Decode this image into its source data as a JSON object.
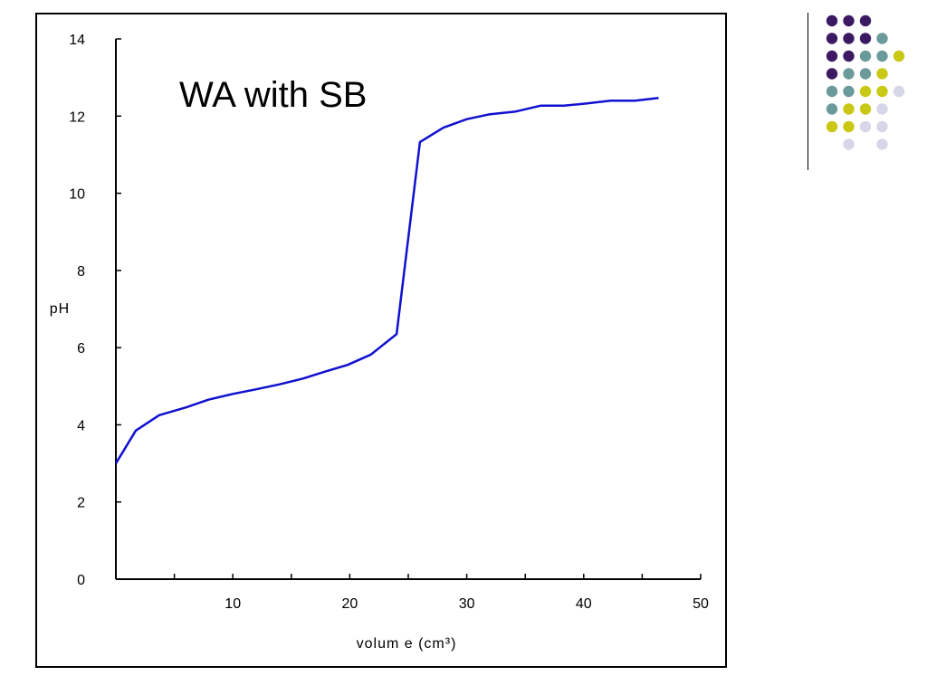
{
  "chart_data": {
    "type": "line",
    "title": "WA with SB",
    "xlabel": "volum e (cm³)",
    "ylabel": "pH",
    "xlim": [
      0,
      50
    ],
    "ylim": [
      0,
      14
    ],
    "x_ticks": [
      "10",
      "20",
      "30",
      "40",
      "50"
    ],
    "y_ticks": [
      "0",
      "2",
      "4",
      "6",
      "8",
      "10",
      "12",
      "14"
    ],
    "grid": false,
    "series": [
      {
        "color": "#1010d0",
        "x": [
          0,
          1.7,
          3.7,
          6,
          7.9,
          10,
          12,
          14,
          16,
          17.9,
          19.8,
          21.8,
          24,
          26,
          28,
          30,
          32,
          34.2,
          36.3,
          38.3,
          40.3,
          42.3,
          44.4,
          46.4
        ],
        "y": [
          3.0,
          3.85,
          4.25,
          4.45,
          4.65,
          4.8,
          4.92,
          5.05,
          5.2,
          5.38,
          5.55,
          5.82,
          6.35,
          11.33,
          11.7,
          11.92,
          12.05,
          12.12,
          12.27,
          12.27,
          12.33,
          12.4,
          12.4,
          12.47
        ]
      }
    ]
  },
  "decoration": {
    "dot_colors": {
      "purple": "#3b1a63",
      "teal": "#6b9a9a",
      "yellow": "#c9c814",
      "lavender": "#d6d6e8"
    }
  }
}
